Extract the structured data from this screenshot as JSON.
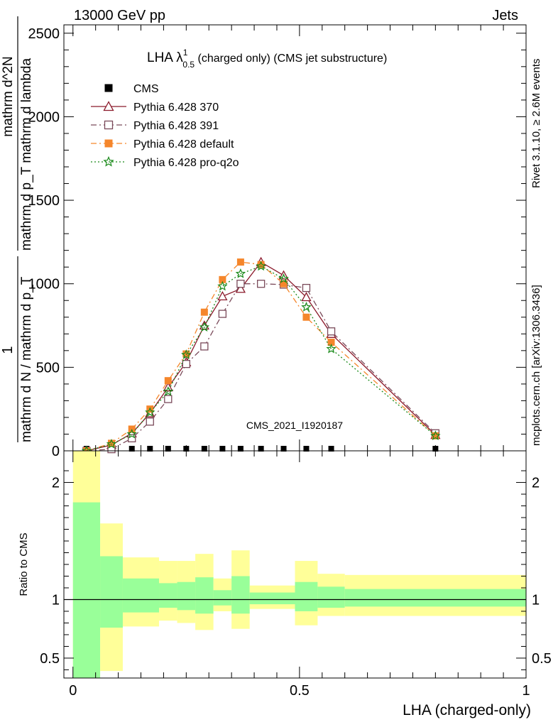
{
  "header": {
    "left": "13000 GeV pp",
    "right": "Jets"
  },
  "side_labels": {
    "top": "Rivet 3.1.10, ≥ 2.6M events",
    "bottom": "mcplots.cern.ch [arXiv:1306.3436]"
  },
  "watermark": "CMS_2021_I1920187",
  "chart_data": [
    {
      "type": "line",
      "title": {
        "base": "LHA λ",
        "sup": "1",
        "sub": "0.5",
        "rest": " (charged only) (CMS jet substructure)"
      },
      "ylabel": {
        "numerator": "1",
        "denominator": "mathrm d N / mathrm d p_T",
        "rhs_numerator": "mathrm d^2N",
        "rhs_denominator": "mathrm d p_T mathrm d lambda"
      },
      "xlim": [
        -0.02,
        1.0
      ],
      "ylim": [
        0,
        2550
      ],
      "yticks": [
        0,
        500,
        1000,
        1500,
        2000,
        2500
      ],
      "yticklabels": [
        "0",
        "500",
        "1000",
        "1500",
        "2000",
        "2500"
      ],
      "grid": false,
      "legend_position": "top-left",
      "series": [
        {
          "name": "CMS",
          "color": "#000000",
          "marker": "square-filled",
          "dash": "",
          "x": [
            0.03,
            0.085,
            0.13,
            0.17,
            0.21,
            0.25,
            0.29,
            0.33,
            0.37,
            0.415,
            0.465,
            0.515,
            0.57,
            0.8
          ],
          "y": [
            0,
            0,
            0,
            0,
            0,
            0,
            0,
            0,
            0,
            0,
            0,
            0,
            0,
            0
          ]
        },
        {
          "name": "Pythia 6.428 370",
          "color": "#8b1a2b",
          "marker": "triangle-open",
          "dash": "",
          "x": [
            0.03,
            0.085,
            0.13,
            0.17,
            0.21,
            0.25,
            0.29,
            0.33,
            0.37,
            0.415,
            0.465,
            0.515,
            0.57,
            0.8
          ],
          "y": [
            0,
            35,
            105,
            225,
            380,
            530,
            750,
            925,
            970,
            1130,
            1050,
            920,
            700,
            95
          ]
        },
        {
          "name": "Pythia 6.428 391",
          "color": "#7a4a5a",
          "marker": "square-open",
          "dash": "8,4,2,4",
          "x": [
            0.03,
            0.085,
            0.13,
            0.17,
            0.21,
            0.25,
            0.29,
            0.33,
            0.37,
            0.415,
            0.465,
            0.515,
            0.57,
            0.8
          ],
          "y": [
            0,
            10,
            75,
            175,
            310,
            520,
            625,
            820,
            1000,
            1000,
            995,
            975,
            715,
            105
          ]
        },
        {
          "name": "Pythia 6.428 default",
          "color": "#f5862b",
          "marker": "square-filled",
          "dash": "8,4,2,4",
          "x": [
            0.03,
            0.085,
            0.13,
            0.17,
            0.21,
            0.25,
            0.29,
            0.33,
            0.37,
            0.415,
            0.465,
            0.515,
            0.57,
            0.8
          ],
          "y": [
            0,
            45,
            130,
            250,
            420,
            580,
            830,
            1025,
            1130,
            1115,
            1000,
            800,
            650,
            90
          ]
        },
        {
          "name": "Pythia 6.428 pro-q2o",
          "color": "#1a8a1a",
          "marker": "star-open",
          "dash": "2,3",
          "x": [
            0.03,
            0.085,
            0.13,
            0.17,
            0.21,
            0.25,
            0.29,
            0.33,
            0.37,
            0.415,
            0.465,
            0.515,
            0.57,
            0.8
          ],
          "y": [
            0,
            40,
            100,
            230,
            355,
            575,
            740,
            985,
            1060,
            1105,
            1030,
            860,
            610,
            90
          ]
        }
      ]
    },
    {
      "type": "area",
      "ylabel": "Ratio to CMS",
      "xlabel": "LHA (charged-only)",
      "xlim": [
        -0.02,
        1.0
      ],
      "ylim": [
        0.33,
        2.27
      ],
      "yticks": [
        0.5,
        1,
        2
      ],
      "yticklabels": [
        "0.5",
        "1",
        "2"
      ],
      "xticks": [
        0,
        0.5,
        1
      ],
      "xticklabels": [
        "0",
        "0.5",
        "1"
      ],
      "reference_line": 1,
      "band_colors": {
        "outer": "#ffff99",
        "inner": "#99ff99"
      },
      "bins": [
        {
          "x": [
            0.0,
            0.06
          ],
          "outer": [
            0.33,
            2.27
          ],
          "inner": [
            0.33,
            1.83
          ]
        },
        {
          "x": [
            0.06,
            0.11
          ],
          "outer": [
            0.39,
            1.65
          ],
          "inner": [
            0.76,
            1.37
          ]
        },
        {
          "x": [
            0.11,
            0.19
          ],
          "outer": [
            0.77,
            1.36
          ],
          "inner": [
            0.89,
            1.18
          ]
        },
        {
          "x": [
            0.19,
            0.23
          ],
          "outer": [
            0.82,
            1.33
          ],
          "inner": [
            0.93,
            1.14
          ]
        },
        {
          "x": [
            0.23,
            0.27
          ],
          "outer": [
            0.8,
            1.33
          ],
          "inner": [
            0.91,
            1.15
          ]
        },
        {
          "x": [
            0.27,
            0.31
          ],
          "outer": [
            0.74,
            1.39
          ],
          "inner": [
            0.88,
            1.19
          ]
        },
        {
          "x": [
            0.31,
            0.35
          ],
          "outer": [
            0.9,
            1.18
          ],
          "inner": [
            0.95,
            1.08
          ]
        },
        {
          "x": [
            0.35,
            0.39
          ],
          "outer": [
            0.75,
            1.42
          ],
          "inner": [
            0.88,
            1.2
          ]
        },
        {
          "x": [
            0.39,
            0.49
          ],
          "outer": [
            0.92,
            1.12
          ],
          "inner": [
            0.96,
            1.06
          ]
        },
        {
          "x": [
            0.49,
            0.54
          ],
          "outer": [
            0.78,
            1.33
          ],
          "inner": [
            0.9,
            1.15
          ]
        },
        {
          "x": [
            0.54,
            0.6
          ],
          "outer": [
            0.86,
            1.22
          ],
          "inner": [
            0.93,
            1.11
          ]
        },
        {
          "x": [
            0.6,
            1.0
          ],
          "outer": [
            0.86,
            1.21
          ],
          "inner": [
            0.94,
            1.09
          ]
        }
      ]
    }
  ]
}
